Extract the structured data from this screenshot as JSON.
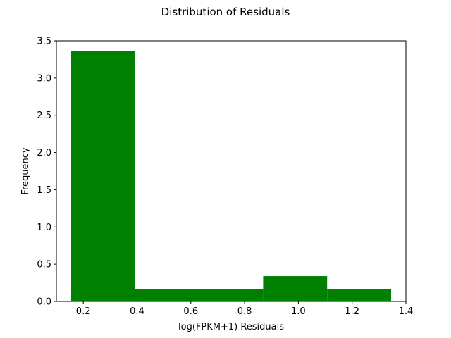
{
  "chart_data": {
    "type": "bar",
    "title": "Distribution of Residuals",
    "xlabel": "log(FPKM+1) Residuals",
    "ylabel": "Frequency",
    "xlim": [
      0.1,
      1.4
    ],
    "ylim": [
      0,
      3.5
    ],
    "xticks": [
      0.2,
      0.4,
      0.6,
      0.8,
      1.0,
      1.2,
      1.4
    ],
    "xtick_labels": [
      "0.2",
      "0.4",
      "0.6",
      "0.8",
      "1.0",
      "1.2",
      "1.4"
    ],
    "yticks": [
      0.0,
      0.5,
      1.0,
      1.5,
      2.0,
      2.5,
      3.0,
      3.5
    ],
    "ytick_labels": [
      "0.0",
      "0.5",
      "1.0",
      "1.5",
      "2.0",
      "2.5",
      "3.0",
      "3.5"
    ],
    "bins": [
      {
        "x0": 0.155,
        "x1": 0.393,
        "value": 3.36
      },
      {
        "x0": 0.393,
        "x1": 0.631,
        "value": 0.17
      },
      {
        "x0": 0.631,
        "x1": 0.869,
        "value": 0.17
      },
      {
        "x0": 0.869,
        "x1": 1.107,
        "value": 0.34
      },
      {
        "x0": 1.107,
        "x1": 1.345,
        "value": 0.17
      }
    ],
    "bar_color": "#008000",
    "grid": false,
    "legend": false
  }
}
